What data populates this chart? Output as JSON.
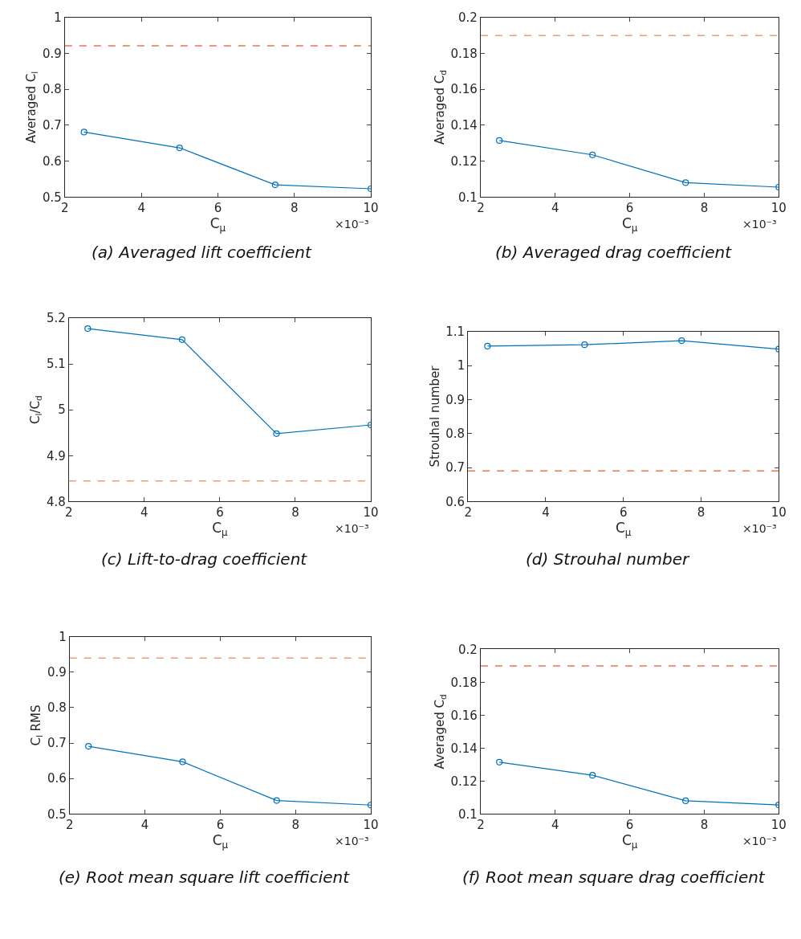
{
  "chart_data": [
    {
      "type": "line",
      "title": "(a) Averaged lift coefficient",
      "xlabel": "C$_{μ}$",
      "ylabel": "Averaged C$_{l}$",
      "annotations": [
        "×10⁻³"
      ],
      "x": [
        2.5,
        5,
        7.5,
        10
      ],
      "series": [
        {
          "color": "#0072bd",
          "values": [
            0.681,
            0.637,
            0.534,
            0.523
          ]
        }
      ],
      "xlim": [
        2,
        10
      ],
      "xticks": [
        2,
        4,
        6,
        8,
        10
      ],
      "ylim": [
        0.5,
        1
      ],
      "yticks": [
        0.5,
        0.6,
        0.7,
        0.8,
        0.9,
        1
      ],
      "ref_lines": [
        {
          "axis": "y",
          "value": 0.921,
          "color": "#e8774f",
          "line_style": "dashed"
        }
      ],
      "marker": "circle"
    },
    {
      "type": "line",
      "title": "(b) Averaged drag coefficient",
      "xlabel": "C$_{μ}$",
      "ylabel": "Averaged C$_{d}$",
      "annotations": [
        "×10⁻³"
      ],
      "x": [
        2.5,
        5,
        7.5,
        10
      ],
      "series": [
        {
          "color": "#0072bd",
          "values": [
            0.1315,
            0.1235,
            0.108,
            0.1055
          ]
        }
      ],
      "xlim": [
        2,
        10
      ],
      "xticks": [
        2,
        4,
        6,
        8,
        10
      ],
      "ylim": [
        0.1,
        0.2
      ],
      "yticks": [
        0.1,
        0.12,
        0.14,
        0.16,
        0.18,
        0.2
      ],
      "ref_lines": [
        {
          "axis": "y",
          "value": 0.19,
          "color": "#ef9a7a",
          "line_style": "dashed"
        }
      ],
      "marker": "circle"
    },
    {
      "type": "line",
      "title": "(c) Lift-to-drag coefficient",
      "xlabel": "C$_{μ}$",
      "ylabel": "C$_{l}$/C$_{d}$",
      "annotations": [
        "×10⁻³"
      ],
      "x": [
        2.5,
        5,
        7.5,
        10
      ],
      "series": [
        {
          "color": "#0072bd",
          "values": [
            5.177,
            5.153,
            4.948,
            4.967
          ]
        }
      ],
      "xlim": [
        2,
        10
      ],
      "xticks": [
        2,
        4,
        6,
        8,
        10
      ],
      "ylim": [
        4.8,
        5.2
      ],
      "yticks": [
        4.8,
        4.9,
        5,
        5.1,
        5.2
      ],
      "ref_lines": [
        {
          "axis": "y",
          "value": 4.845,
          "color": "#ef9a7a",
          "line_style": "dashed"
        }
      ],
      "marker": "circle"
    },
    {
      "type": "line",
      "title": "(d) Strouhal number",
      "xlabel": "C$_{μ}$",
      "ylabel": "Strouhal number",
      "annotations": [
        "×10⁻³"
      ],
      "x": [
        2.5,
        5,
        7.5,
        10
      ],
      "series": [
        {
          "color": "#0072bd",
          "values": [
            1.057,
            1.061,
            1.073,
            1.048
          ]
        }
      ],
      "xlim": [
        2,
        10
      ],
      "xticks": [
        2,
        4,
        6,
        8,
        10
      ],
      "ylim": [
        0.6,
        1.1
      ],
      "yticks": [
        0.6,
        0.7,
        0.8,
        0.9,
        1,
        1.1
      ],
      "ref_lines": [
        {
          "axis": "y",
          "value": 0.69,
          "color": "#e8774f",
          "line_style": "dashed"
        }
      ],
      "marker": "circle"
    },
    {
      "type": "line",
      "title": "(e) Root mean square lift coefficient",
      "xlabel": "C$_{μ}$",
      "ylabel": "C$_{l}$ RMS",
      "annotations": [
        "×10⁻³"
      ],
      "x": [
        2.5,
        5,
        7.5,
        10
      ],
      "series": [
        {
          "color": "#0072bd",
          "values": [
            0.691,
            0.647,
            0.538,
            0.525
          ]
        }
      ],
      "xlim": [
        2,
        10
      ],
      "xticks": [
        2,
        4,
        6,
        8,
        10
      ],
      "ylim": [
        0.5,
        1
      ],
      "yticks": [
        0.5,
        0.6,
        0.7,
        0.8,
        0.9,
        1
      ],
      "ref_lines": [
        {
          "axis": "y",
          "value": 0.94,
          "color": "#ef9a7a",
          "line_style": "dashed"
        }
      ],
      "marker": "circle"
    },
    {
      "type": "line",
      "title": "(f) Root mean square drag coefficient",
      "xlabel": "C$_{μ}$",
      "ylabel": "Averaged C$_{d}$",
      "annotations": [
        "×10⁻³"
      ],
      "x": [
        2.5,
        5,
        7.5,
        10
      ],
      "series": [
        {
          "color": "#0072bd",
          "values": [
            0.1315,
            0.1235,
            0.108,
            0.1055
          ]
        }
      ],
      "xlim": [
        2,
        10
      ],
      "xticks": [
        2,
        4,
        6,
        8,
        10
      ],
      "ylim": [
        0.1,
        0.2
      ],
      "yticks": [
        0.1,
        0.12,
        0.14,
        0.16,
        0.18,
        0.2
      ],
      "ref_lines": [
        {
          "axis": "y",
          "value": 0.19,
          "color": "#e8774f",
          "line_style": "dashed"
        }
      ],
      "marker": "circle"
    }
  ]
}
